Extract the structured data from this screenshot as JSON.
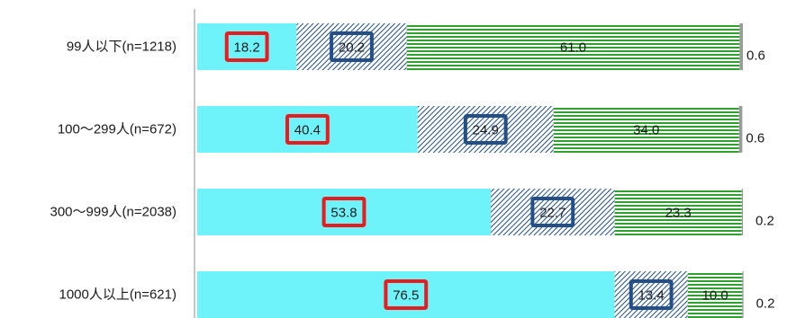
{
  "chart_data": {
    "type": "bar",
    "orientation": "horizontal",
    "stacked": true,
    "categories": [
      "99人以下(n=1218)",
      "100～299人(n=672)",
      "300～999人(n=2038)",
      "1000人以上(n=621)"
    ],
    "series": [
      {
        "values": [
          18.2,
          40.4,
          53.8,
          76.5
        ],
        "color": "#6ff3fa",
        "pattern": "solid",
        "label_box_color": "#e81c1c"
      },
      {
        "values": [
          20.2,
          24.9,
          22.7,
          13.4
        ],
        "color": "#1f4e8c",
        "pattern": "diagonal-hatch",
        "label_box_color": "#244f86"
      },
      {
        "values": [
          61.0,
          34.0,
          23.3,
          10.0
        ],
        "color": "#2ea12e",
        "pattern": "horizontal-lines"
      },
      {
        "values": [
          0.6,
          0.6,
          0.2,
          0.2
        ],
        "color": "#9a9a9a",
        "pattern": "solid"
      }
    ],
    "xlim": [
      0,
      100
    ],
    "grid": false,
    "legend": "none"
  }
}
